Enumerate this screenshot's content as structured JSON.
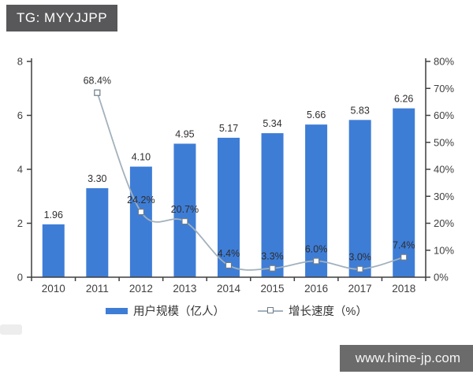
{
  "badge": {
    "text": "TG: MYYJJPP"
  },
  "watermark": {
    "text": "www.hime-jp.com"
  },
  "colors": {
    "bar": "#3E7DD6",
    "line": "#A2B1BC",
    "marker_fill": "#FFFFFF",
    "marker_border": "#6E7B86",
    "axis": "#3F3F3F",
    "data_label": "#2E2E2E",
    "tick_label": "#404040",
    "badge_bg": "#58585A",
    "watermark_bg": "#6B6B6B"
  },
  "chart_data": {
    "type": "bar",
    "subtype": "bar+line-dual-axis",
    "categories": [
      "2010",
      "2011",
      "2012",
      "2013",
      "2014",
      "2015",
      "2016",
      "2017",
      "2018"
    ],
    "series": [
      {
        "name": "用户规模（亿人）",
        "type": "bar",
        "axis": "left",
        "values": [
          1.96,
          3.3,
          4.1,
          4.95,
          5.17,
          5.34,
          5.66,
          5.83,
          6.26
        ],
        "labels": [
          "1.96",
          "3.30",
          "4.10",
          "4.95",
          "5.17",
          "5.34",
          "5.66",
          "5.83",
          "6.26"
        ]
      },
      {
        "name": "增长速度（%）",
        "type": "line",
        "axis": "right",
        "values": [
          null,
          68.4,
          24.2,
          20.7,
          4.4,
          3.3,
          6.0,
          3.0,
          7.4
        ],
        "labels": [
          null,
          "68.4%",
          "24.2%",
          "20.7%",
          "4.4%",
          "3.3%",
          "6.0%",
          "3.0%",
          "7.4%"
        ]
      }
    ],
    "left_axis": {
      "min": 0,
      "max": 8,
      "step": 2,
      "ticks": [
        "0",
        "2",
        "4",
        "6",
        "8"
      ]
    },
    "right_axis": {
      "min": 0,
      "max": 80,
      "step": 10,
      "ticks": [
        "0%",
        "10%",
        "20%",
        "30%",
        "40%",
        "50%",
        "60%",
        "70%",
        "80%"
      ]
    },
    "grid": false,
    "legend_position": "bottom"
  }
}
